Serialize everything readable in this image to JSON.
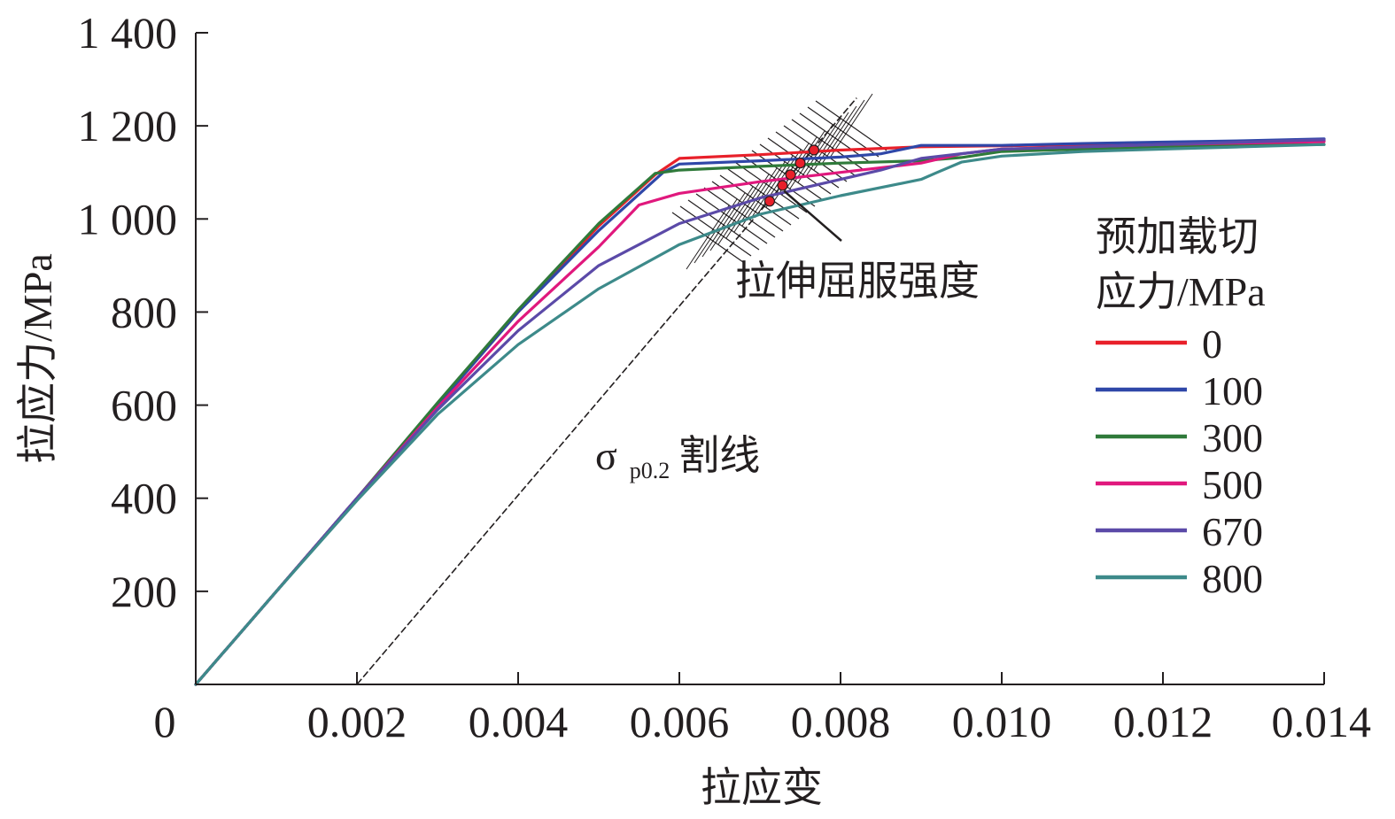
{
  "chart_data": {
    "type": "line",
    "title": "",
    "xlabel": "拉应变",
    "ylabel": "拉应力/MPa",
    "xlim": [
      0,
      0.014
    ],
    "ylim": [
      0,
      1400
    ],
    "x_ticks": [
      0.002,
      0.004,
      0.006,
      0.008,
      0.01,
      0.012,
      0.014
    ],
    "x_tick_labels": [
      "0.002",
      "0.004",
      "0.006",
      "0.008",
      "0.010",
      "0.012",
      "0.014"
    ],
    "origin_label": "0",
    "y_ticks": [
      200,
      400,
      600,
      800,
      1000,
      1200,
      1400
    ],
    "y_tick_labels": [
      "200",
      "400",
      "600",
      "800",
      "1 000",
      "1 200",
      "1 400"
    ],
    "grid": false,
    "legend": {
      "title_line1": "预加载切",
      "title_line2": "应力/MPa",
      "position": "right"
    },
    "series": [
      {
        "name": "0",
        "color": "#e8202a",
        "points": [
          [
            0,
            0
          ],
          [
            0.001,
            200
          ],
          [
            0.002,
            400
          ],
          [
            0.003,
            600
          ],
          [
            0.004,
            800
          ],
          [
            0.005,
            985
          ],
          [
            0.0057,
            1095
          ],
          [
            0.006,
            1130
          ],
          [
            0.007,
            1138
          ],
          [
            0.008,
            1148
          ],
          [
            0.009,
            1155
          ],
          [
            0.01,
            1157
          ],
          [
            0.011,
            1160
          ],
          [
            0.012,
            1163
          ],
          [
            0.013,
            1166
          ],
          [
            0.014,
            1168
          ]
        ]
      },
      {
        "name": "100",
        "color": "#2f47a8",
        "points": [
          [
            0,
            0
          ],
          [
            0.001,
            200
          ],
          [
            0.002,
            400
          ],
          [
            0.003,
            600
          ],
          [
            0.004,
            800
          ],
          [
            0.005,
            975
          ],
          [
            0.0058,
            1100
          ],
          [
            0.006,
            1118
          ],
          [
            0.007,
            1125
          ],
          [
            0.008,
            1133
          ],
          [
            0.0085,
            1140
          ],
          [
            0.009,
            1158
          ],
          [
            0.01,
            1158
          ],
          [
            0.011,
            1162
          ],
          [
            0.012,
            1165
          ],
          [
            0.013,
            1168
          ],
          [
            0.014,
            1172
          ]
        ]
      },
      {
        "name": "300",
        "color": "#2f7a3a",
        "points": [
          [
            0,
            0
          ],
          [
            0.001,
            200
          ],
          [
            0.002,
            400
          ],
          [
            0.003,
            605
          ],
          [
            0.004,
            805
          ],
          [
            0.005,
            990
          ],
          [
            0.0057,
            1098
          ],
          [
            0.006,
            1105
          ],
          [
            0.007,
            1113
          ],
          [
            0.008,
            1120
          ],
          [
            0.009,
            1125
          ],
          [
            0.0095,
            1132
          ],
          [
            0.01,
            1145
          ],
          [
            0.011,
            1150
          ],
          [
            0.012,
            1155
          ],
          [
            0.013,
            1158
          ],
          [
            0.014,
            1160
          ]
        ]
      },
      {
        "name": "500",
        "color": "#e0187d",
        "points": [
          [
            0,
            0
          ],
          [
            0.001,
            200
          ],
          [
            0.002,
            400
          ],
          [
            0.003,
            595
          ],
          [
            0.004,
            780
          ],
          [
            0.005,
            940
          ],
          [
            0.0055,
            1030
          ],
          [
            0.006,
            1055
          ],
          [
            0.007,
            1080
          ],
          [
            0.008,
            1100
          ],
          [
            0.009,
            1120
          ],
          [
            0.0095,
            1140
          ],
          [
            0.01,
            1150
          ],
          [
            0.011,
            1155
          ],
          [
            0.012,
            1160
          ],
          [
            0.013,
            1163
          ],
          [
            0.014,
            1166
          ]
        ]
      },
      {
        "name": "670",
        "color": "#5b4aa8",
        "points": [
          [
            0,
            0
          ],
          [
            0.001,
            200
          ],
          [
            0.002,
            400
          ],
          [
            0.003,
            590
          ],
          [
            0.004,
            760
          ],
          [
            0.005,
            900
          ],
          [
            0.006,
            990
          ],
          [
            0.007,
            1045
          ],
          [
            0.008,
            1085
          ],
          [
            0.0085,
            1105
          ],
          [
            0.009,
            1130
          ],
          [
            0.01,
            1150
          ],
          [
            0.011,
            1155
          ],
          [
            0.012,
            1160
          ],
          [
            0.013,
            1165
          ],
          [
            0.014,
            1170
          ]
        ]
      },
      {
        "name": "800",
        "color": "#3d8a8a",
        "points": [
          [
            0,
            0
          ],
          [
            0.001,
            200
          ],
          [
            0.002,
            395
          ],
          [
            0.003,
            580
          ],
          [
            0.004,
            730
          ],
          [
            0.005,
            850
          ],
          [
            0.006,
            945
          ],
          [
            0.007,
            1010
          ],
          [
            0.008,
            1050
          ],
          [
            0.009,
            1085
          ],
          [
            0.0092,
            1100
          ],
          [
            0.0095,
            1122
          ],
          [
            0.01,
            1135
          ],
          [
            0.011,
            1145
          ],
          [
            0.012,
            1150
          ],
          [
            0.013,
            1155
          ],
          [
            0.014,
            1160
          ]
        ]
      }
    ],
    "secant_line": {
      "points": [
        [
          0.002,
          0
        ],
        [
          0.0082,
          1260
        ]
      ]
    },
    "secant_label_main": "σ",
    "secant_label_sub": "p0.2",
    "secant_label_suffix": "割线",
    "yield_points": [
      {
        "x": 0.00767,
        "y": 1148
      },
      {
        "x": 0.0075,
        "y": 1120
      },
      {
        "x": 0.00738,
        "y": 1095
      },
      {
        "x": 0.00728,
        "y": 1072
      },
      {
        "x": 0.00712,
        "y": 1038
      }
    ],
    "yield_point_color": "#e8202a",
    "annotation": "拉伸屈服强度"
  }
}
